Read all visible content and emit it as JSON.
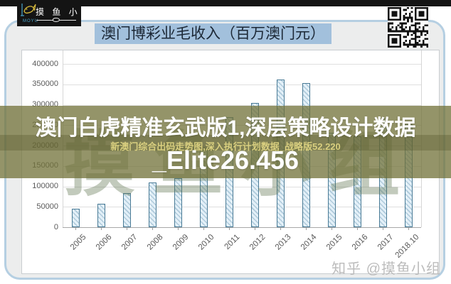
{
  "logo": {
    "brand_cn": "摸 鱼 小 组",
    "brand_en": "MOYU"
  },
  "header": {
    "title": "澳门博彩业毛收入（百万澳门元）"
  },
  "overlay": {
    "line1": "澳门白虎精准玄武版1,深层策略设计数据",
    "subline": "新澳门综合出码走势图,深入执行计划数据_战略版52.220",
    "line2": "_Elite26.456"
  },
  "watermarks": {
    "chart_watermark": "摸鱼小组",
    "credit": "知乎 @摸鱼小组"
  },
  "icons": {
    "fish_logo": "fish-logo-icon",
    "qr_code": "qr-code-icon"
  },
  "colors": {
    "topbar": "#141414",
    "card_border": "#b5cfe2",
    "title_highlight": "#a2c0dc",
    "banner_olive": "rgba(114,114,58,0.76)",
    "bar_fill": "#e3f0f8",
    "bar_stripe": "#afcadb",
    "bar_border": "#4a7b96",
    "axis_text": "#595959"
  },
  "chart_data": {
    "type": "bar",
    "title": "澳门博彩业毛收入（百万澳门元）",
    "xlabel": "",
    "ylabel": "",
    "categories": [
      "2005",
      "2006",
      "2007",
      "2008",
      "2009",
      "2010",
      "2011",
      "2012",
      "2013",
      "2014",
      "2015",
      "2016",
      "2017",
      "2018.10"
    ],
    "values": [
      45800,
      57500,
      83800,
      109800,
      120400,
      189600,
      269100,
      305200,
      361900,
      352700,
      231800,
      223200,
      265700,
      251900
    ],
    "ylim": [
      0,
      400000
    ],
    "ytick_step": 50000,
    "grid": true,
    "legend": false,
    "bar_style": "hatched"
  }
}
